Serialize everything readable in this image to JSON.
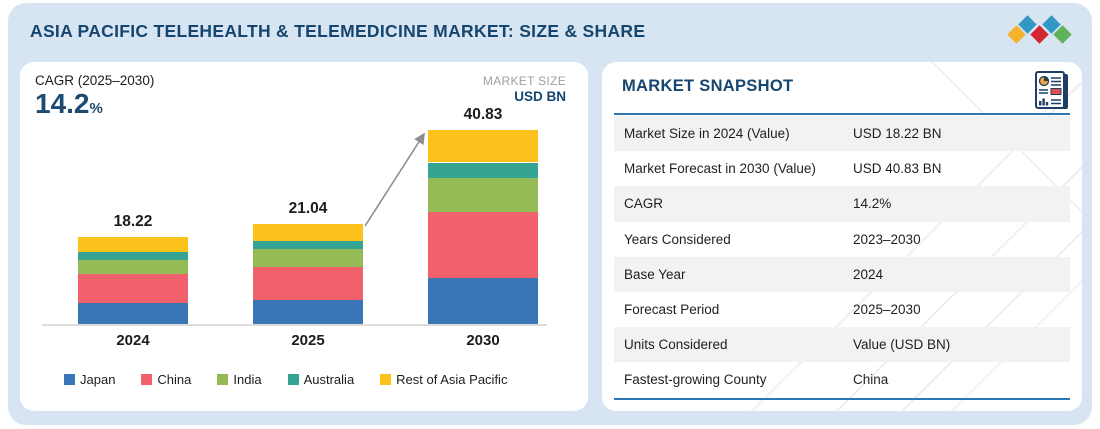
{
  "header": {
    "title": "ASIA PACIFIC TELEHEALTH & TELEMEDICINE MARKET: SIZE & SHARE"
  },
  "logo": {
    "diamond_colors": [
      "#f3b229",
      "#3398c4",
      "#d32630",
      "#3398c4",
      "#5eb359"
    ]
  },
  "left_panel": {
    "cagr_label": "CAGR (2025–2030)",
    "cagr_value": "14.2",
    "cagr_unit": "%",
    "market_size_label": "MARKET SIZE",
    "market_size_unit": "USD BN"
  },
  "chart_data": {
    "type": "bar",
    "stacked": true,
    "title": "",
    "xlabel": "",
    "ylabel": "USD BN",
    "grid": false,
    "legend_position": "bottom",
    "categories": [
      "2024",
      "2025",
      "2030"
    ],
    "totals": [
      18.22,
      21.04,
      40.83
    ],
    "total_labels": [
      "18.22",
      "21.04",
      "40.83"
    ],
    "series": [
      {
        "name": "Japan",
        "color": "#3a76b5",
        "values": [
          4.47,
          5.15,
          9.63
        ]
      },
      {
        "name": "China",
        "color": "#f0616c",
        "values": [
          5.96,
          6.85,
          13.96
        ]
      },
      {
        "name": "India",
        "color": "#94bb56",
        "values": [
          3.04,
          3.75,
          7.12
        ]
      },
      {
        "name": "Australia",
        "color": "#36a492",
        "values": [
          1.77,
          1.62,
          3.29
        ]
      },
      {
        "name": "Rest of Asia Pacific",
        "color": "#fbc21b",
        "values": [
          2.98,
          3.67,
          6.83
        ]
      }
    ]
  },
  "snapshot": {
    "title": "MARKET SNAPSHOT",
    "rows": [
      {
        "label": "Market Size in 2024 (Value)",
        "value": "USD 18.22 BN"
      },
      {
        "label": "Market Forecast in 2030 (Value)",
        "value": "USD 40.83 BN"
      },
      {
        "label": "CAGR",
        "value": "14.2%"
      },
      {
        "label": "Years Considered",
        "value": "2023–2030"
      },
      {
        "label": "Base Year",
        "value": "2024"
      },
      {
        "label": "Forecast Period",
        "value": "2025–2030"
      },
      {
        "label": "Units Considered",
        "value": "Value (USD BN)"
      },
      {
        "label": "Fastest-growing County",
        "value": "China"
      }
    ]
  },
  "colors": {
    "container_bg": "#d7e4f1",
    "navy": "#16466f",
    "rule_blue": "#2f76b5",
    "row_shade": "#f2f2f2",
    "arrow_gray": "#8d8d8d",
    "muted_gray": "#9aa0a5"
  }
}
